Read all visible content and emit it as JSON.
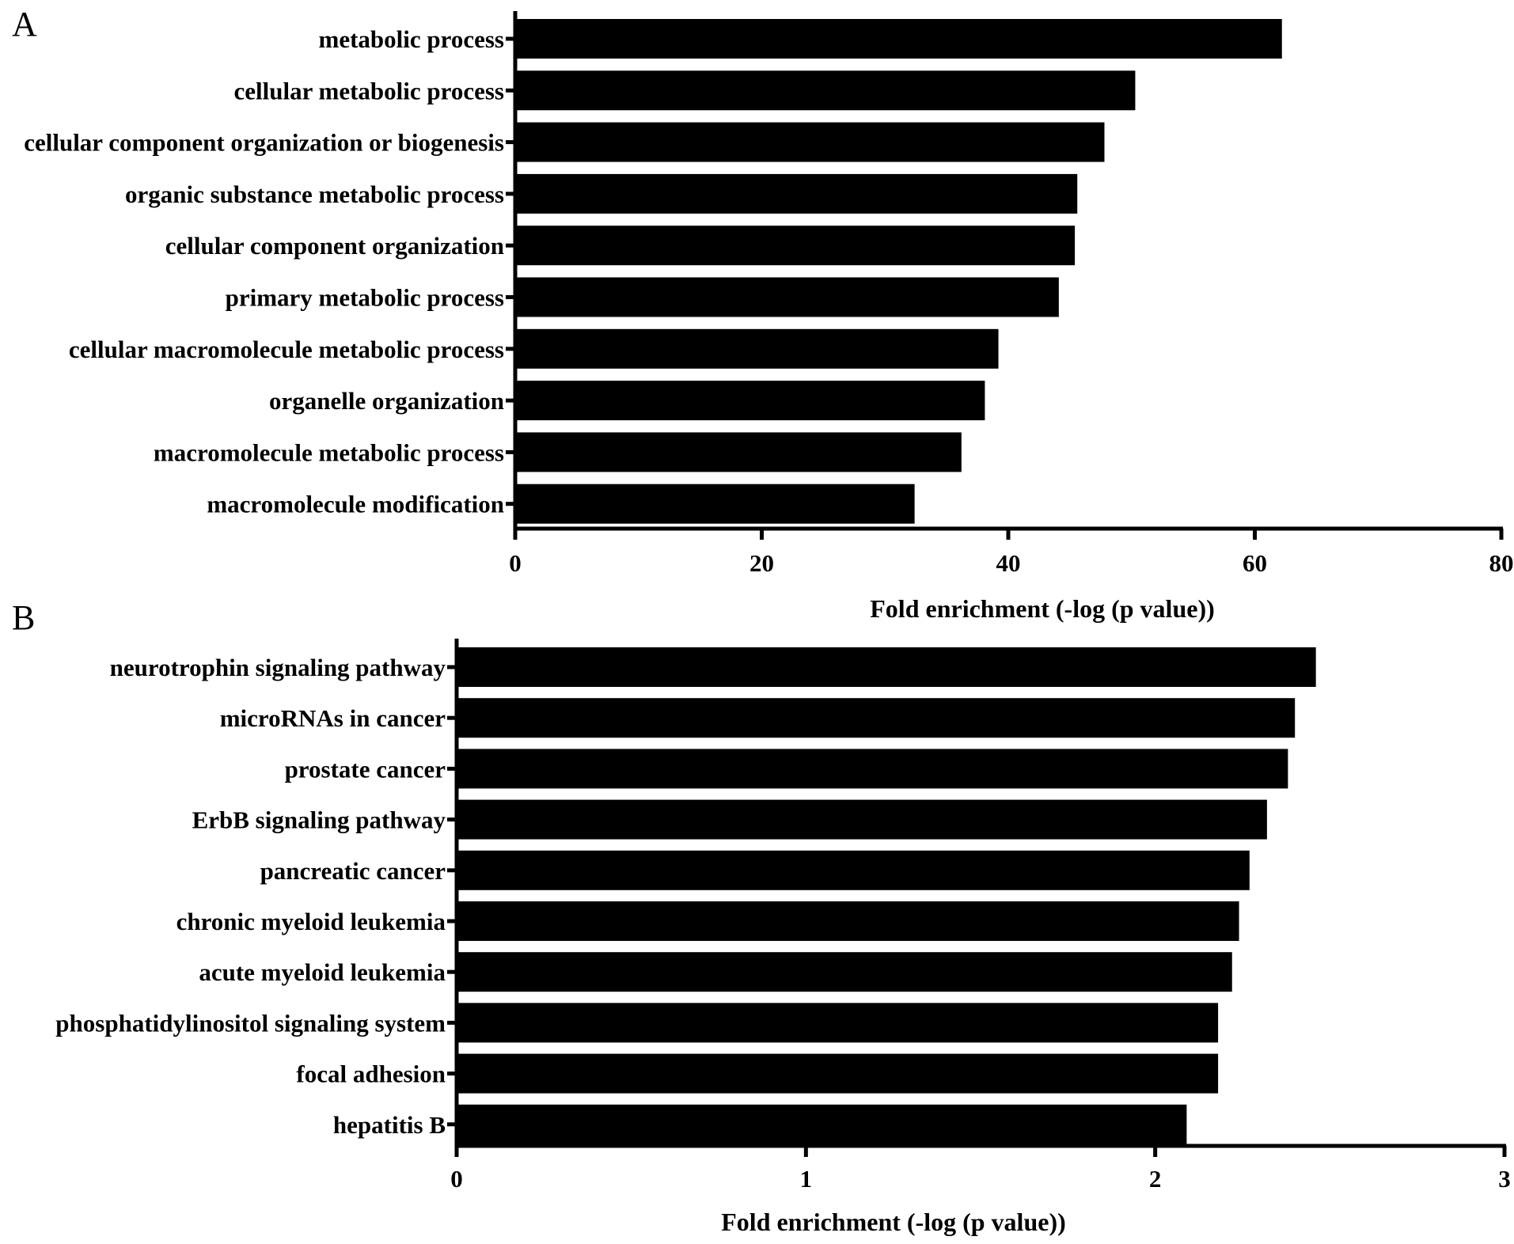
{
  "chart_data": [
    {
      "panel": "A",
      "type": "bar",
      "orientation": "horizontal",
      "categories": [
        "metabolic process",
        "cellular metabolic process",
        "cellular component organization or biogenesis",
        "organic substance metabolic process",
        "cellular component organization",
        "primary metabolic process",
        "cellular macromolecule metabolic process",
        "organelle organization",
        "macromolecule metabolic process",
        "macromolecule modification"
      ],
      "values": [
        62.2,
        50.3,
        47.8,
        45.6,
        45.4,
        44.1,
        39.2,
        38.1,
        36.2,
        32.4
      ],
      "xlabel": "Fold enrichment (-log (p value))",
      "xlim": [
        0,
        80
      ],
      "xticks": [
        "0",
        "20",
        "40",
        "60",
        "80"
      ],
      "bar_color": "#000000",
      "grid": false,
      "legend": false
    },
    {
      "panel": "B",
      "type": "bar",
      "orientation": "horizontal",
      "categories": [
        "neurotrophin signaling pathway",
        "microRNAs in cancer",
        "prostate cancer",
        "ErbB signaling pathway",
        "pancreatic cancer",
        "chronic myeloid leukemia",
        "acute myeloid leukemia",
        "phosphatidylinositol signaling system",
        "focal adhesion",
        "hepatitis B"
      ],
      "values": [
        2.46,
        2.4,
        2.38,
        2.32,
        2.27,
        2.24,
        2.22,
        2.18,
        2.18,
        2.09
      ],
      "xlabel": "Fold enrichment (-log (p value))",
      "xlim": [
        0,
        3
      ],
      "xticks": [
        "0",
        "1",
        "2",
        "3"
      ],
      "bar_color": "#000000",
      "grid": false,
      "legend": false
    }
  ]
}
